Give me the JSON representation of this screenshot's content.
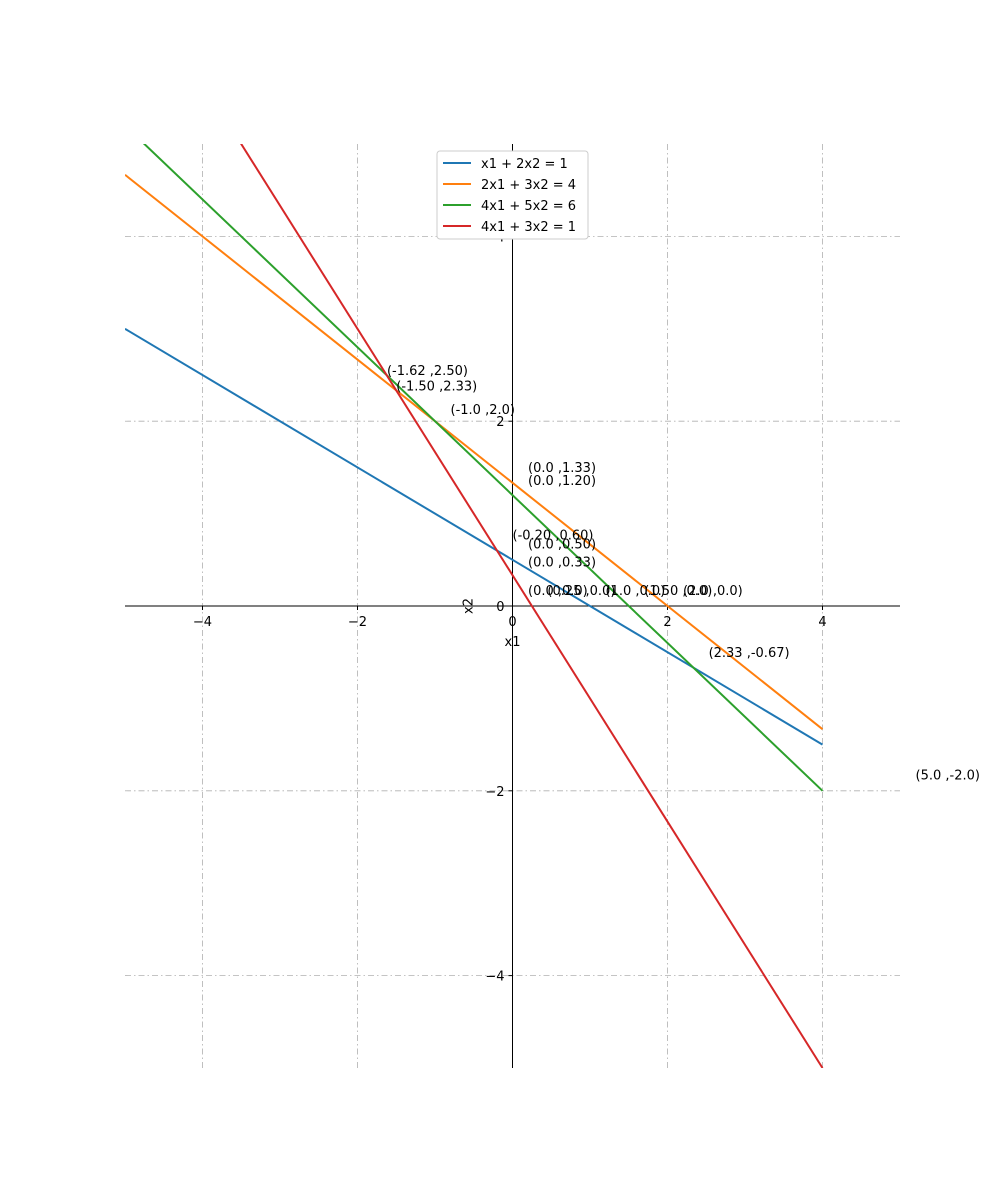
{
  "chart_data": {
    "type": "line",
    "title": "",
    "xlabel": "x1",
    "ylabel": "x2",
    "xlim": [
      -5,
      5
    ],
    "ylim": [
      -5,
      5
    ],
    "x_ticks": [
      {
        "value": -4,
        "label": "−4"
      },
      {
        "value": -2,
        "label": "−2"
      },
      {
        "value": 0,
        "label": "0"
      },
      {
        "value": 2,
        "label": "2"
      },
      {
        "value": 4,
        "label": "4"
      }
    ],
    "y_ticks": [
      {
        "value": -4,
        "label": "−4"
      },
      {
        "value": -2,
        "label": "−2"
      },
      {
        "value": 0,
        "label": "0"
      },
      {
        "value": 2,
        "label": "2"
      },
      {
        "value": 4,
        "label": "4"
      }
    ],
    "grid": true,
    "legend_position": "top-center",
    "series": [
      {
        "name": "x1 + 2x2 = 1",
        "color": "#1f77b4",
        "x": [
          -5,
          4
        ],
        "y": [
          3.0,
          -1.5
        ]
      },
      {
        "name": "2x1 + 3x2 = 4",
        "color": "#ff7f0e",
        "x": [
          -5,
          4
        ],
        "y": [
          4.667,
          -1.333
        ]
      },
      {
        "name": "4x1 + 5x2 = 6",
        "color": "#2ca02c",
        "x": [
          -5,
          4
        ],
        "y": [
          5.2,
          -2.0
        ]
      },
      {
        "name": "4x1 + 3x2 = 1",
        "color": "#d62728",
        "x": [
          -5,
          4
        ],
        "y": [
          7.0,
          -5.0
        ]
      }
    ],
    "annotations": [
      {
        "text": "(-1.62 ,2.50)",
        "x": -1.62,
        "y": 2.5
      },
      {
        "text": "(-1.50 ,2.33)",
        "x": -1.5,
        "y": 2.33
      },
      {
        "text": "(-1.0 ,2.0)",
        "x": -0.8,
        "y": 2.08
      },
      {
        "text": "(0.0 ,1.33)",
        "x": 0.2,
        "y": 1.45
      },
      {
        "text": "(0.0 ,1.20)",
        "x": 0.2,
        "y": 1.31
      },
      {
        "text": "(-0.20 ,0.60)",
        "x": 0.0,
        "y": 0.72
      },
      {
        "text": "(0.0 ,0.50)",
        "x": 0.2,
        "y": 0.62
      },
      {
        "text": "(0.0 ,0.33)",
        "x": 0.2,
        "y": 0.43
      },
      {
        "text": "(0.0 ,0.0)",
        "x": 0.2,
        "y": 0.12
      },
      {
        "text": "(0.25 ,0.0)",
        "x": 0.45,
        "y": 0.12
      },
      {
        "text": "(1.0 ,0.0)",
        "x": 1.2,
        "y": 0.12
      },
      {
        "text": "(1.50 ,0.0)",
        "x": 1.7,
        "y": 0.12
      },
      {
        "text": "(2.0 ,0.0)",
        "x": 2.2,
        "y": 0.12
      },
      {
        "text": "(2.33 ,-0.67)",
        "x": 2.53,
        "y": -0.55
      },
      {
        "text": "(5.0 ,-2.0)",
        "x": 5.2,
        "y": -1.88
      }
    ]
  }
}
